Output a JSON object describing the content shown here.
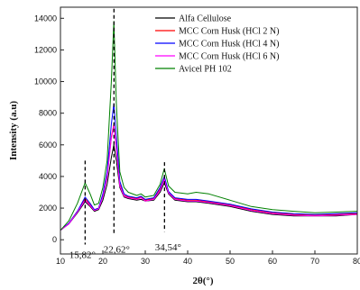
{
  "chart_data": {
    "type": "line",
    "title": "",
    "xlabel": "2θ(°)",
    "ylabel": "Intensity (a.u)",
    "xlim": [
      10,
      80
    ],
    "ylim": [
      -900,
      14700
    ],
    "xticks": [
      10,
      20,
      30,
      40,
      50,
      60,
      70,
      80
    ],
    "yticks": [
      0,
      2000,
      4000,
      6000,
      8000,
      10000,
      12000,
      14000
    ],
    "grid": false,
    "legend": "top-right",
    "annotations": [
      {
        "x": 15.82,
        "label": "15,82°"
      },
      {
        "x": 22.62,
        "label": "22,62°"
      },
      {
        "x": 34.54,
        "label": "34,54°"
      }
    ],
    "series": [
      {
        "name": "Alfa Cellulose",
        "color": "#000000",
        "x": [
          10,
          12,
          14,
          15.8,
          17,
          18,
          19,
          20,
          21,
          22,
          22.6,
          23.2,
          24,
          25,
          26,
          28,
          29,
          30,
          32,
          33.5,
          34.5,
          35.5,
          37,
          40,
          42,
          45,
          50,
          55,
          60,
          65,
          70,
          75,
          80
        ],
        "y": [
          600,
          1000,
          1700,
          2400,
          2100,
          1800,
          1900,
          2500,
          3500,
          5200,
          6000,
          5000,
          3300,
          2700,
          2600,
          2500,
          2550,
          2450,
          2500,
          3000,
          3600,
          2900,
          2500,
          2400,
          2400,
          2300,
          2100,
          1800,
          1600,
          1500,
          1500,
          1500,
          1600
        ]
      },
      {
        "name": "MCC Corn Husk (HCl 2 N)",
        "color": "#ff0000",
        "x": [
          10,
          12,
          14,
          15.8,
          17,
          18,
          19,
          20,
          21,
          22,
          22.6,
          23.2,
          24,
          25,
          26,
          28,
          29,
          30,
          32,
          33.5,
          34.5,
          35.5,
          37,
          40,
          42,
          45,
          50,
          55,
          60,
          65,
          70,
          75,
          80
        ],
        "y": [
          600,
          1050,
          1800,
          2600,
          2200,
          1900,
          2000,
          2800,
          4000,
          6500,
          7300,
          5800,
          3500,
          2800,
          2700,
          2600,
          2700,
          2500,
          2600,
          3200,
          3900,
          3000,
          2600,
          2500,
          2500,
          2400,
          2200,
          1900,
          1700,
          1600,
          1550,
          1600,
          1650
        ]
      },
      {
        "name": "MCC Corn Husk (HCl 4 N)",
        "color": "#0000ff",
        "x": [
          10,
          12,
          14,
          15.8,
          17,
          18,
          19,
          20,
          21,
          22,
          22.6,
          23.2,
          24,
          25,
          26,
          28,
          29,
          30,
          32,
          33.5,
          34.5,
          35.5,
          37,
          40,
          42,
          45,
          50,
          55,
          60,
          65,
          70,
          75,
          80
        ],
        "y": [
          600,
          1050,
          1800,
          2700,
          2300,
          1900,
          2000,
          2900,
          4300,
          7300,
          8600,
          6500,
          3700,
          2900,
          2750,
          2650,
          2750,
          2550,
          2650,
          3300,
          4000,
          3050,
          2650,
          2550,
          2550,
          2450,
          2250,
          1950,
          1750,
          1650,
          1600,
          1650,
          1700
        ]
      },
      {
        "name": "MCC Corn Husk (HCl 6 N)",
        "color": "#ff00ff",
        "x": [
          10,
          12,
          14,
          15.8,
          17,
          18,
          19,
          20,
          21,
          22,
          22.6,
          23.2,
          24,
          25,
          26,
          28,
          29,
          30,
          32,
          33.5,
          34.5,
          35.5,
          37,
          40,
          42,
          45,
          50,
          55,
          60,
          65,
          70,
          75,
          80
        ],
        "y": [
          600,
          1000,
          1750,
          2500,
          2150,
          1850,
          1950,
          2700,
          3900,
          6400,
          7200,
          5700,
          3400,
          2750,
          2650,
          2550,
          2650,
          2450,
          2550,
          3100,
          3800,
          2950,
          2550,
          2450,
          2450,
          2350,
          2150,
          1850,
          1650,
          1550,
          1500,
          1550,
          1600
        ]
      },
      {
        "name": "Avicel PH 102",
        "color": "#008000",
        "x": [
          10,
          12,
          14,
          15.8,
          17,
          18,
          19,
          20,
          21,
          22,
          22.6,
          23.2,
          24,
          25,
          26,
          28,
          29,
          30,
          32,
          33.5,
          34.5,
          35.5,
          37,
          40,
          42,
          45,
          50,
          55,
          60,
          65,
          70,
          75,
          80
        ],
        "y": [
          600,
          1200,
          2300,
          3600,
          2900,
          2200,
          2300,
          3300,
          5000,
          10000,
          13800,
          8500,
          4300,
          3300,
          3000,
          2800,
          2900,
          2700,
          2800,
          3500,
          4500,
          3400,
          3000,
          2900,
          3000,
          2900,
          2500,
          2100,
          1900,
          1800,
          1700,
          1750,
          1800
        ]
      }
    ]
  }
}
